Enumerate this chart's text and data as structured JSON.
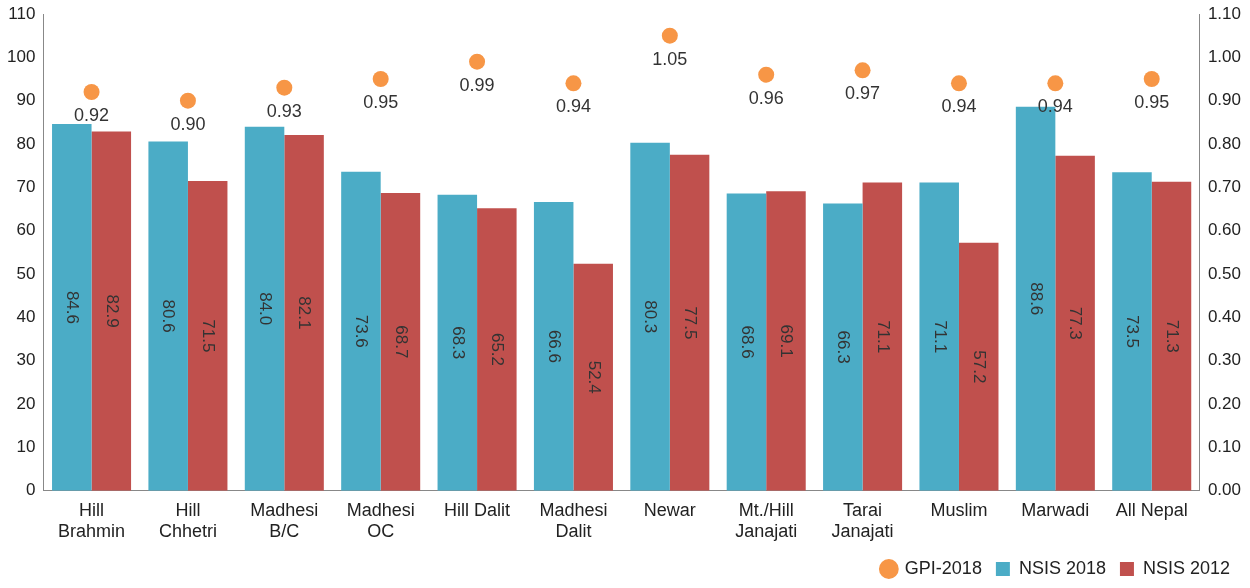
{
  "chart_data": {
    "type": "bar",
    "categories": [
      "Hill\nBrahmin",
      "Hill\nChhetri",
      "Madhesi\nB/C",
      "Madhesi\nOC",
      "Hill Dalit",
      "Madhesi\nDalit",
      "Newar",
      "Mt./Hill\nJanajati",
      "Tarai\nJanajati",
      "Muslim",
      "Marwadi",
      "All Nepal"
    ],
    "series": [
      {
        "name": "NSIS 2018",
        "color": "#4bacc6",
        "values": [
          84.6,
          80.6,
          84.0,
          73.6,
          68.3,
          66.6,
          80.3,
          68.6,
          66.3,
          71.1,
          88.6,
          73.5
        ],
        "value_labels": [
          "84.6",
          "80.6",
          "84.0",
          "73.6",
          "68.3",
          "66.6",
          "80.3",
          "68.6",
          "66.3",
          "71.1",
          "88.6",
          "73.5"
        ]
      },
      {
        "name": "NSIS 2012",
        "color": "#c0504d",
        "values": [
          82.9,
          71.5,
          82.1,
          68.7,
          65.2,
          52.4,
          77.5,
          69.1,
          71.1,
          57.2,
          77.3,
          71.3
        ],
        "value_labels": [
          "82.9",
          "71.5",
          "82.1",
          "68.7",
          "65.2",
          "52.4",
          "77.5",
          "69.1",
          "71.1",
          "57.2",
          "77.3",
          "71.3"
        ]
      },
      {
        "name": "GPI-2018",
        "type": "scatter",
        "axis": "y2",
        "color": "#f79646",
        "marker": "circle",
        "values": [
          0.92,
          0.9,
          0.93,
          0.95,
          0.99,
          0.94,
          1.05,
          0.96,
          0.97,
          0.94,
          0.94,
          0.95
        ],
        "value_labels": [
          "0.92",
          "0.90",
          "0.93",
          "0.95",
          "0.99",
          "0.94",
          "1.05",
          "0.96",
          "0.97",
          "0.94",
          "0.94",
          "0.95"
        ]
      }
    ],
    "ylim": [
      0,
      110
    ],
    "yticks": [
      0,
      10,
      20,
      30,
      40,
      50,
      60,
      70,
      80,
      90,
      100,
      110
    ],
    "y2lim": [
      0,
      1.1
    ],
    "y2ticks": [
      {
        "value": 0,
        "label": "0.00"
      },
      {
        "value": 0.1,
        "label": "0.10"
      },
      {
        "value": 0.2,
        "label": "0.20"
      },
      {
        "value": 0.3,
        "label": "0.30"
      },
      {
        "value": 0.4,
        "label": "0.40"
      },
      {
        "value": 0.5,
        "label": "0.50"
      },
      {
        "value": 0.6,
        "label": "0.60"
      },
      {
        "value": 0.7,
        "label": "0.70"
      },
      {
        "value": 0.8,
        "label": "0.80"
      },
      {
        "value": 0.9,
        "label": "0.90"
      },
      {
        "value": 1.0,
        "label": "1.00"
      },
      {
        "value": 1.1,
        "label": "1.10"
      }
    ],
    "grid": false,
    "legend": "bottom right"
  }
}
